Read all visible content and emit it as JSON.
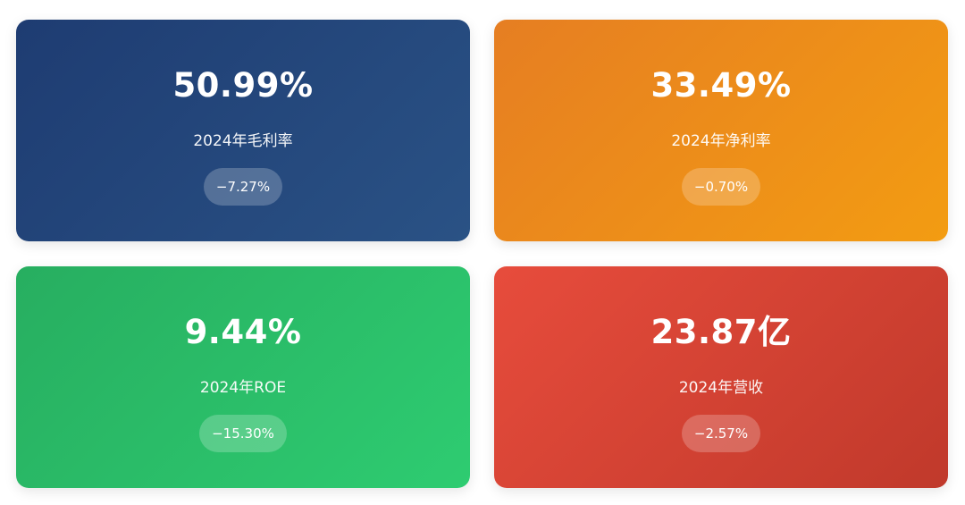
{
  "cards": [
    {
      "value": "50.99%",
      "label": "2024年毛利率",
      "change": "−7.27%",
      "color": "#1e3c72"
    },
    {
      "value": "33.49%",
      "label": "2024年净利率",
      "change": "−0.70%",
      "color": "#e67e22"
    },
    {
      "value": "9.44%",
      "label": "2024年ROE",
      "change": "−15.30%",
      "color": "#27ae60"
    },
    {
      "value": "23.87亿",
      "label": "2024年营收",
      "change": "−2.57%",
      "color": "#e74c3c"
    }
  ]
}
